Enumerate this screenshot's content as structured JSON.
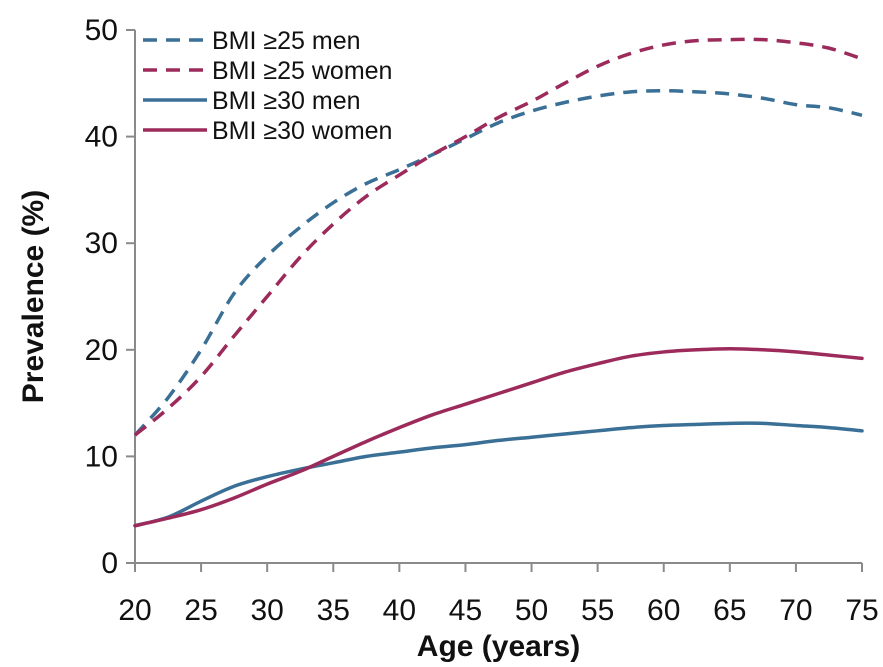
{
  "chart_data": {
    "type": "line",
    "title": "",
    "xlabel": "Age (years)",
    "ylabel": "Prevalence (%)",
    "xlim": [
      20,
      75
    ],
    "ylim": [
      0,
      50
    ],
    "xticks": [
      "20",
      "25",
      "30",
      "35",
      "40",
      "45",
      "50",
      "55",
      "60",
      "65",
      "70",
      "75"
    ],
    "yticks": [
      "0",
      "10",
      "20",
      "30",
      "40",
      "50"
    ],
    "grid": false,
    "legend_position": "top-left",
    "x": [
      20,
      22.5,
      25,
      27.5,
      30,
      32.5,
      35,
      37.5,
      40,
      42.5,
      45,
      47.5,
      50,
      52.5,
      55,
      57.5,
      60,
      62.5,
      65,
      67.5,
      70,
      72.5,
      75
    ],
    "series": [
      {
        "name": "BMI ≥25 men",
        "color": "#3a6f96",
        "dash": "dashed",
        "values": [
          12.0,
          15.5,
          20.0,
          25.3,
          28.8,
          31.5,
          33.8,
          35.6,
          36.9,
          38.3,
          39.8,
          41.3,
          42.4,
          43.2,
          43.8,
          44.2,
          44.3,
          44.2,
          44.0,
          43.6,
          43.0,
          42.7,
          42.0
        ]
      },
      {
        "name": "BMI ≥25 women",
        "color": "#9c2b5b",
        "dash": "dashed",
        "values": [
          12.0,
          14.5,
          17.5,
          21.3,
          25.0,
          28.7,
          31.8,
          34.4,
          36.4,
          38.3,
          40.0,
          41.8,
          43.3,
          45.0,
          46.6,
          47.8,
          48.6,
          49.0,
          49.1,
          49.1,
          48.8,
          48.3,
          47.3
        ]
      },
      {
        "name": "BMI ≥30 men",
        "color": "#3a6f96",
        "dash": "solid",
        "values": [
          3.5,
          4.3,
          5.8,
          7.2,
          8.1,
          8.8,
          9.4,
          10.0,
          10.4,
          10.8,
          11.1,
          11.5,
          11.8,
          12.1,
          12.4,
          12.7,
          12.9,
          13.0,
          13.1,
          13.1,
          12.9,
          12.7,
          12.4
        ]
      },
      {
        "name": "BMI ≥30 women",
        "color": "#9c2b5b",
        "dash": "solid",
        "values": [
          3.5,
          4.2,
          5.0,
          6.1,
          7.4,
          8.6,
          10.0,
          11.4,
          12.7,
          13.9,
          14.9,
          15.9,
          16.9,
          17.9,
          18.7,
          19.4,
          19.8,
          20.0,
          20.1,
          20.0,
          19.8,
          19.5,
          19.2
        ]
      }
    ]
  }
}
